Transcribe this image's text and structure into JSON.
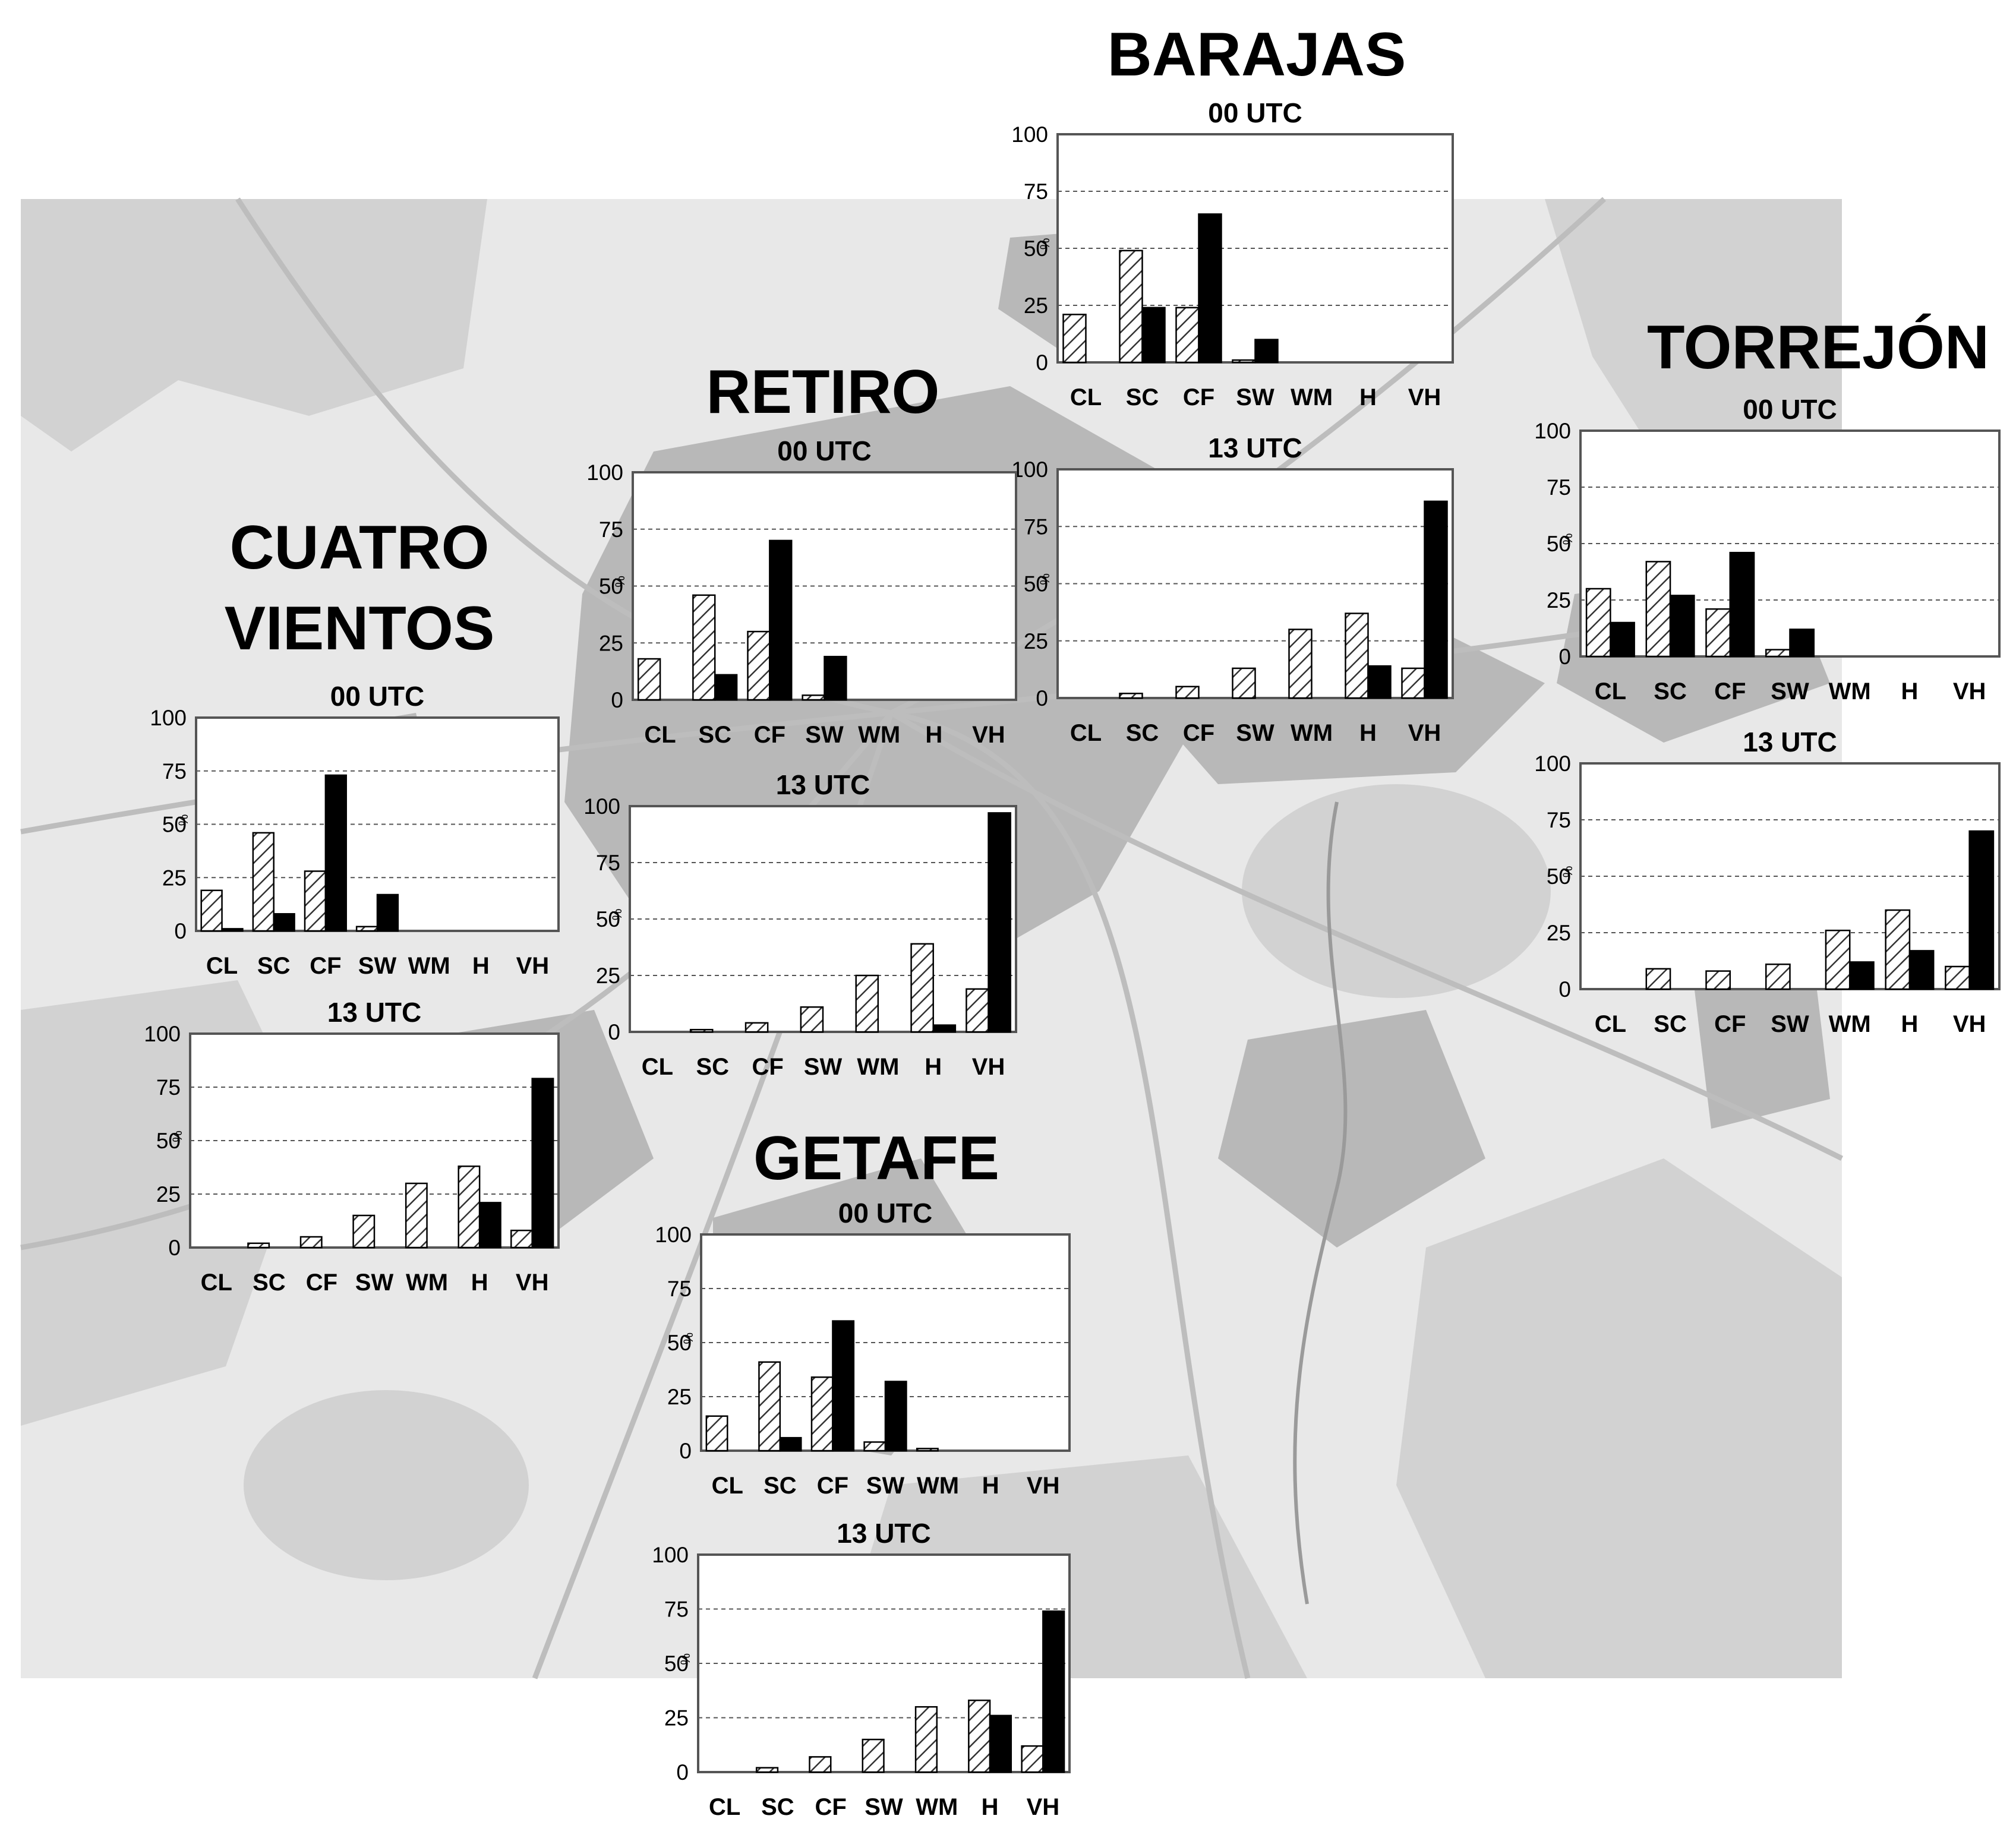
{
  "map": {
    "background": "#e8e8e8",
    "urban_color": "#b4b4b4",
    "green_color": "#cfcfcf",
    "road_color": "#bdbdbd"
  },
  "colors": {
    "hatched_series": "#ffffff",
    "hatch_lines": "#333333",
    "solid_series": "#000000",
    "grid": "#555555"
  },
  "stations": [
    {
      "id": "barajas",
      "name_lines": [
        "BARAJAS"
      ]
    },
    {
      "id": "torrejon",
      "name_lines": [
        "TORREJÓN"
      ]
    },
    {
      "id": "retiro",
      "name_lines": [
        "RETIRO"
      ]
    },
    {
      "id": "cuatro-vientos",
      "name_lines": [
        "CUATRO",
        "VIENTOS"
      ]
    },
    {
      "id": "getafe",
      "name_lines": [
        "GETAFE"
      ]
    }
  ],
  "chart_data": [
    {
      "station": "barajas",
      "type": "bar",
      "subtitle": "00 UTC",
      "ylabel": "%",
      "ylim": [
        0,
        100
      ],
      "yticks": [
        0,
        25,
        50,
        75,
        100
      ],
      "grid": true,
      "categories": [
        "CL",
        "SC",
        "CF",
        "SW",
        "WM",
        "H",
        "VH"
      ],
      "series": [
        {
          "pattern": "hatched",
          "values": [
            21,
            49,
            24,
            1,
            0,
            0,
            0
          ]
        },
        {
          "pattern": "solid",
          "values": [
            0,
            24,
            65,
            10,
            0,
            0,
            0
          ]
        }
      ]
    },
    {
      "station": "barajas",
      "type": "bar",
      "subtitle": "13 UTC",
      "ylabel": "%",
      "ylim": [
        0,
        100
      ],
      "yticks": [
        0,
        25,
        50,
        75,
        100
      ],
      "grid": true,
      "categories": [
        "CL",
        "SC",
        "CF",
        "SW",
        "WM",
        "H",
        "VH"
      ],
      "series": [
        {
          "pattern": "hatched",
          "values": [
            0,
            2,
            5,
            13,
            30,
            37,
            13
          ]
        },
        {
          "pattern": "solid",
          "values": [
            0,
            0,
            0,
            0,
            0,
            14,
            86
          ]
        }
      ]
    },
    {
      "station": "torrejon",
      "type": "bar",
      "subtitle": "00 UTC",
      "ylabel": "%",
      "ylim": [
        0,
        100
      ],
      "yticks": [
        0,
        25,
        50,
        75,
        100
      ],
      "grid": true,
      "categories": [
        "CL",
        "SC",
        "CF",
        "SW",
        "WM",
        "H",
        "VH"
      ],
      "series": [
        {
          "pattern": "hatched",
          "values": [
            30,
            42,
            21,
            3,
            0,
            0,
            0
          ]
        },
        {
          "pattern": "solid",
          "values": [
            15,
            27,
            46,
            12,
            0,
            0,
            0
          ]
        }
      ]
    },
    {
      "station": "torrejon",
      "type": "bar",
      "subtitle": "13 UTC",
      "ylabel": "%",
      "ylim": [
        0,
        100
      ],
      "yticks": [
        0,
        25,
        50,
        75,
        100
      ],
      "grid": true,
      "categories": [
        "CL",
        "SC",
        "CF",
        "SW",
        "WM",
        "H",
        "VH"
      ],
      "series": [
        {
          "pattern": "hatched",
          "values": [
            0,
            9,
            8,
            11,
            26,
            35,
            10
          ]
        },
        {
          "pattern": "solid",
          "values": [
            0,
            0,
            0,
            0,
            12,
            17,
            70
          ]
        }
      ]
    },
    {
      "station": "retiro",
      "type": "bar",
      "subtitle": "00 UTC",
      "ylabel": "%",
      "ylim": [
        0,
        100
      ],
      "yticks": [
        0,
        25,
        50,
        75,
        100
      ],
      "grid": true,
      "categories": [
        "CL",
        "SC",
        "CF",
        "SW",
        "WM",
        "H",
        "VH"
      ],
      "series": [
        {
          "pattern": "hatched",
          "values": [
            18,
            46,
            30,
            2,
            0,
            0,
            0
          ]
        },
        {
          "pattern": "solid",
          "values": [
            0,
            11,
            70,
            19,
            0,
            0,
            0
          ]
        }
      ]
    },
    {
      "station": "retiro",
      "type": "bar",
      "subtitle": "13 UTC",
      "ylabel": "%",
      "ylim": [
        0,
        100
      ],
      "yticks": [
        0,
        25,
        50,
        75,
        100
      ],
      "grid": true,
      "categories": [
        "CL",
        "SC",
        "CF",
        "SW",
        "WM",
        "H",
        "VH"
      ],
      "series": [
        {
          "pattern": "hatched",
          "values": [
            0,
            1,
            4,
            11,
            25,
            39,
            19
          ]
        },
        {
          "pattern": "solid",
          "values": [
            0,
            0,
            0,
            0,
            0,
            3,
            97
          ]
        }
      ]
    },
    {
      "station": "cuatro-vientos",
      "type": "bar",
      "subtitle": "00 UTC",
      "ylabel": "%",
      "ylim": [
        0,
        100
      ],
      "yticks": [
        0,
        25,
        50,
        75,
        100
      ],
      "grid": true,
      "categories": [
        "CL",
        "SC",
        "CF",
        "SW",
        "WM",
        "H",
        "VH"
      ],
      "series": [
        {
          "pattern": "hatched",
          "values": [
            19,
            46,
            28,
            2,
            0,
            0,
            0
          ]
        },
        {
          "pattern": "solid",
          "values": [
            1,
            8,
            73,
            17,
            0,
            0,
            0
          ]
        }
      ]
    },
    {
      "station": "cuatro-vientos",
      "type": "bar",
      "subtitle": "13 UTC",
      "ylabel": "%",
      "ylim": [
        0,
        100
      ],
      "yticks": [
        0,
        25,
        50,
        75,
        100
      ],
      "grid": true,
      "categories": [
        "CL",
        "SC",
        "CF",
        "SW",
        "WM",
        "H",
        "VH"
      ],
      "series": [
        {
          "pattern": "hatched",
          "values": [
            0,
            2,
            5,
            15,
            30,
            38,
            8
          ]
        },
        {
          "pattern": "solid",
          "values": [
            0,
            0,
            0,
            0,
            0,
            21,
            79
          ]
        }
      ]
    },
    {
      "station": "getafe",
      "type": "bar",
      "subtitle": "00 UTC",
      "ylabel": "%",
      "ylim": [
        0,
        100
      ],
      "yticks": [
        0,
        25,
        50,
        75,
        100
      ],
      "grid": true,
      "categories": [
        "CL",
        "SC",
        "CF",
        "SW",
        "WM",
        "H",
        "VH"
      ],
      "series": [
        {
          "pattern": "hatched",
          "values": [
            16,
            41,
            34,
            4,
            1,
            0,
            0
          ]
        },
        {
          "pattern": "solid",
          "values": [
            0,
            6,
            60,
            32,
            0,
            0,
            0
          ]
        }
      ]
    },
    {
      "station": "getafe",
      "type": "bar",
      "subtitle": "13 UTC",
      "ylabel": "%",
      "ylim": [
        0,
        100
      ],
      "yticks": [
        0,
        25,
        50,
        75,
        100
      ],
      "grid": true,
      "categories": [
        "CL",
        "SC",
        "CF",
        "SW",
        "WM",
        "H",
        "VH"
      ],
      "series": [
        {
          "pattern": "hatched",
          "values": [
            0,
            2,
            7,
            15,
            30,
            33,
            12
          ]
        },
        {
          "pattern": "solid",
          "values": [
            0,
            0,
            0,
            0,
            0,
            26,
            74
          ]
        }
      ]
    }
  ]
}
